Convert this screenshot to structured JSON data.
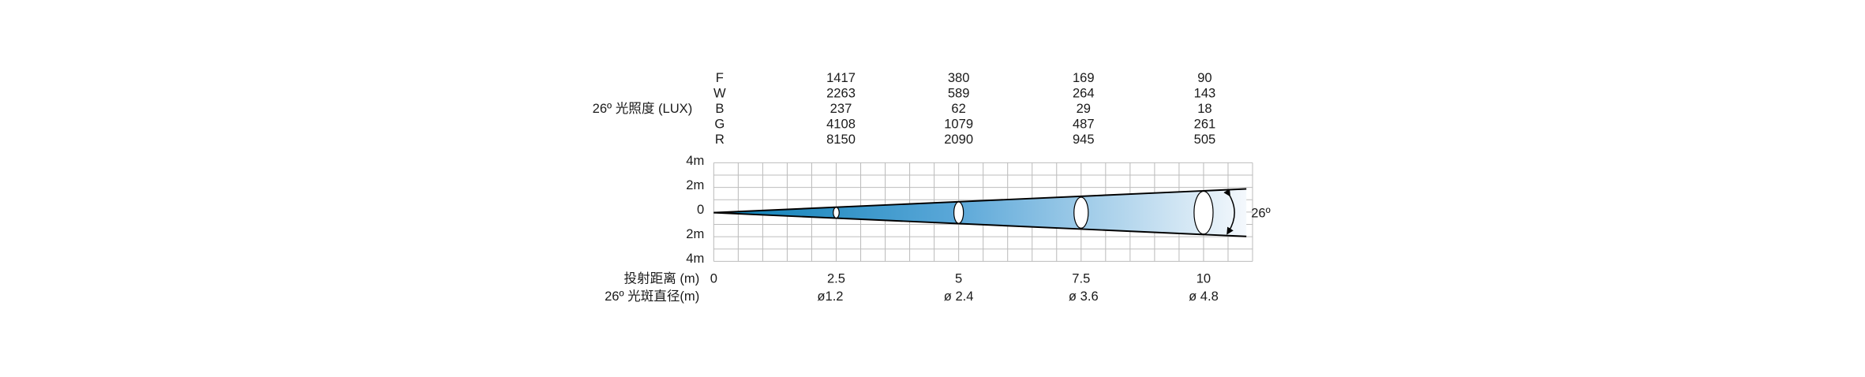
{
  "lux": {
    "title": "26º 光照度 (LUX)",
    "rows": [
      {
        "label": "F",
        "values": [
          1417,
          380,
          169,
          90
        ]
      },
      {
        "label": "W",
        "values": [
          2263,
          589,
          264,
          143
        ]
      },
      {
        "label": "B",
        "values": [
          237,
          62,
          29,
          18
        ]
      },
      {
        "label": "G",
        "values": [
          4108,
          1079,
          487,
          261
        ]
      },
      {
        "label": "R",
        "values": [
          8150,
          2090,
          945,
          505
        ]
      }
    ]
  },
  "height_labels": [
    "4m",
    "2m",
    "0",
    "2m",
    "4m"
  ],
  "angle_label": "26º",
  "distance": {
    "title": "投射距离 (m)",
    "values": [
      "0",
      "2.5",
      "5",
      "7.5",
      "10"
    ]
  },
  "diameter": {
    "title": "26º 光斑直径(m)",
    "values": [
      "ø1.2",
      "ø 2.4",
      "ø 3.6",
      "ø 4.8"
    ]
  }
}
